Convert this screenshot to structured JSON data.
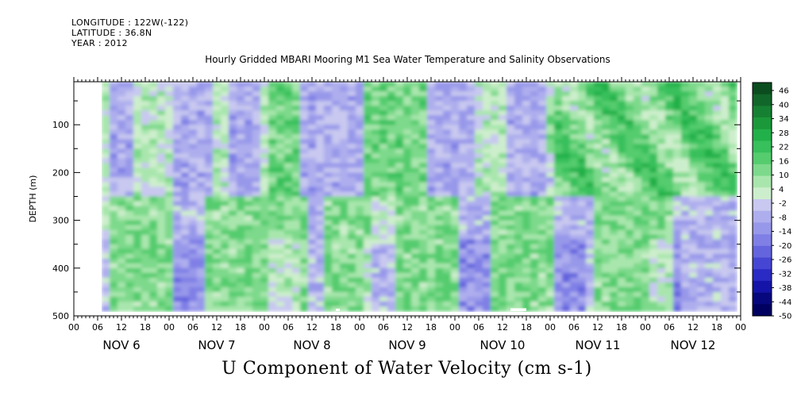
{
  "header": {
    "longitude": "LONGITUDE : 122W(-122)",
    "latitude": "LATITUDE : 36.8N",
    "year": "YEAR : 2012",
    "subtitle": "Hourly Gridded MBARI Mooring M1 Sea Water Temperature and Salinity Observations"
  },
  "chart_data": {
    "type": "heatmap",
    "title": "U Component of Water Velocity (cm s-1)",
    "subtitle": "Hourly Gridded MBARI Mooring M1 Sea Water Temperature and Salinity Observations",
    "ylabel": "DEPTH (m)",
    "xlabel": "",
    "ylim": [
      500,
      10
    ],
    "xlim_hours": [
      0,
      168
    ],
    "y_ticks": [
      100,
      200,
      300,
      400,
      500
    ],
    "x_hour_tick_labels": [
      "00",
      "06",
      "12",
      "18",
      "00",
      "06",
      "12",
      "18",
      "00",
      "06",
      "12",
      "18",
      "00",
      "06",
      "12",
      "18",
      "00",
      "06",
      "12",
      "18",
      "00",
      "06",
      "12",
      "18",
      "00",
      "06",
      "12",
      "18",
      "00"
    ],
    "date_labels": [
      "NOV 6",
      "NOV 7",
      "NOV 8",
      "NOV 9",
      "NOV 10",
      "NOV 11",
      "NOV 12"
    ],
    "colorbar": {
      "labels": [
        "46",
        "40",
        "34",
        "28",
        "22",
        "16",
        "10",
        "4",
        "-2",
        "-8",
        "-14",
        "-20",
        "-26",
        "-32",
        "-38",
        "-44",
        "-50"
      ],
      "min": -50,
      "max": 50,
      "colors_top_to_bottom": [
        "#0b4d1e",
        "#11662a",
        "#168032",
        "#1b993a",
        "#22b04a",
        "#37c05b",
        "#55cc6e",
        "#7dd98b",
        "#a9e6ad",
        "#cdeecc",
        "#c8c8f0",
        "#aeaeee",
        "#9898ea",
        "#7f7fe6",
        "#6464de",
        "#4646d4",
        "#2a2ac4",
        "#1414a8",
        "#07077e",
        "#000060"
      ]
    },
    "data_start_hour": 7,
    "data_end_hour": 166,
    "data_depth_range": [
      10,
      490
    ],
    "missing_segments": [
      {
        "hour_start": 66,
        "hour_end": 67,
        "depth_top": 485,
        "depth_bottom": 490
      },
      {
        "hour_start": 110,
        "hour_end": 114,
        "depth_top": 484,
        "depth_bottom": 490
      }
    ],
    "pattern": {
      "surface_layer_depth": 250,
      "surface_negative_bands_hours": [
        [
          8,
          14
        ],
        [
          24,
          34
        ],
        [
          38,
          46
        ],
        [
          56,
          72
        ],
        [
          88,
          100
        ],
        [
          108,
          118
        ]
      ],
      "surface_positive_bands_hours": [
        [
          48,
          56
        ],
        [
          72,
          88
        ],
        [
          120,
          166
        ]
      ],
      "deep_positive_bands_hours": [
        [
          8,
          24
        ],
        [
          32,
          58
        ],
        [
          62,
          74
        ],
        [
          80,
          96
        ],
        [
          104,
          120
        ],
        [
          130,
          150
        ]
      ],
      "deep_negative_bands_hours": [
        [
          24,
          32
        ],
        [
          58,
          62
        ],
        [
          96,
          104
        ],
        [
          120,
          130
        ],
        [
          150,
          166
        ]
      ],
      "bottom_negative_zone_depth": 330,
      "typical_magnitude": 15
    }
  }
}
